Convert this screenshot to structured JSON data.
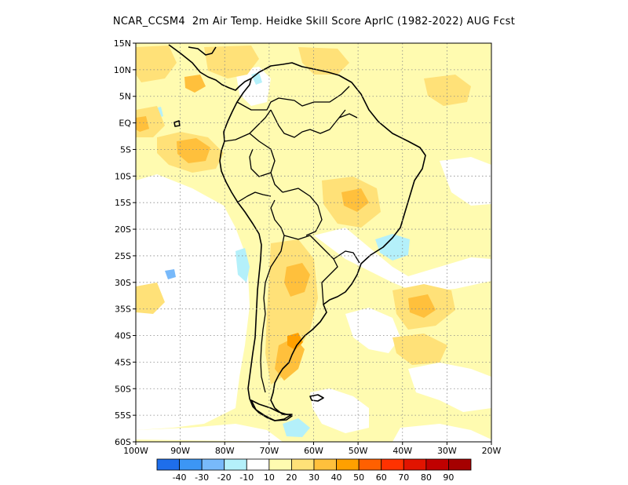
{
  "title": "NCAR_CCSM4  2m Air Temp. Heidke Skill Score AprIC (1982-2022) AUG Fcst",
  "map": {
    "lat_labels": [
      "15N",
      "10N",
      "5N",
      "EQ",
      "5S",
      "10S",
      "15S",
      "20S",
      "25S",
      "30S",
      "35S",
      "40S",
      "45S",
      "50S",
      "55S",
      "60S"
    ],
    "lon_labels": [
      "100W",
      "90W",
      "80W",
      "70W",
      "60W",
      "50W",
      "40W",
      "30W",
      "20W"
    ],
    "gridlines": "dotted",
    "background_fill": "#fffbb0"
  },
  "colorbar": {
    "colors": [
      "#1e6eeb",
      "#3c96f5",
      "#78b9fa",
      "#b4f0fa",
      "#ffffff",
      "#fffbb0",
      "#ffe178",
      "#ffc03c",
      "#ffa000",
      "#ff6000",
      "#ff3200",
      "#e11400",
      "#c00000",
      "#a50000"
    ],
    "labels": [
      "-40",
      "-30",
      "-20",
      "-10",
      "10",
      "20",
      "30",
      "40",
      "50",
      "60",
      "70",
      "80",
      "90"
    ]
  }
}
